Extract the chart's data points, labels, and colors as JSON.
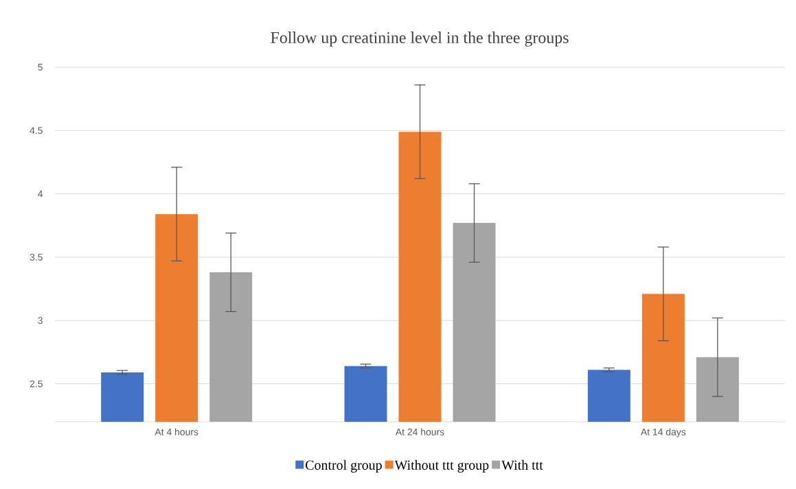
{
  "chart_data": {
    "type": "bar",
    "title": "Follow up creatinine level in the three groups",
    "categories": [
      "At 4 hours",
      "At 24 hours",
      "At 14 days"
    ],
    "series": [
      {
        "name": "Control group",
        "color": "#4472c4",
        "values": [
          2.59,
          2.64,
          2.61
        ],
        "errors": [
          0.015,
          0.015,
          0.015
        ]
      },
      {
        "name": "Without ttt group",
        "color": "#ed7d31",
        "values": [
          3.84,
          4.49,
          3.21
        ],
        "errors": [
          0.37,
          0.37,
          0.37
        ]
      },
      {
        "name": "With ttt",
        "color": "#a5a5a5",
        "values": [
          3.38,
          3.77,
          2.71
        ],
        "errors": [
          0.31,
          0.31,
          0.31
        ]
      }
    ],
    "ylim": [
      2.2,
      5
    ],
    "yticks": [
      2.5,
      3,
      3.5,
      4,
      4.5,
      5
    ],
    "grid": "y",
    "legend": "bottom"
  }
}
